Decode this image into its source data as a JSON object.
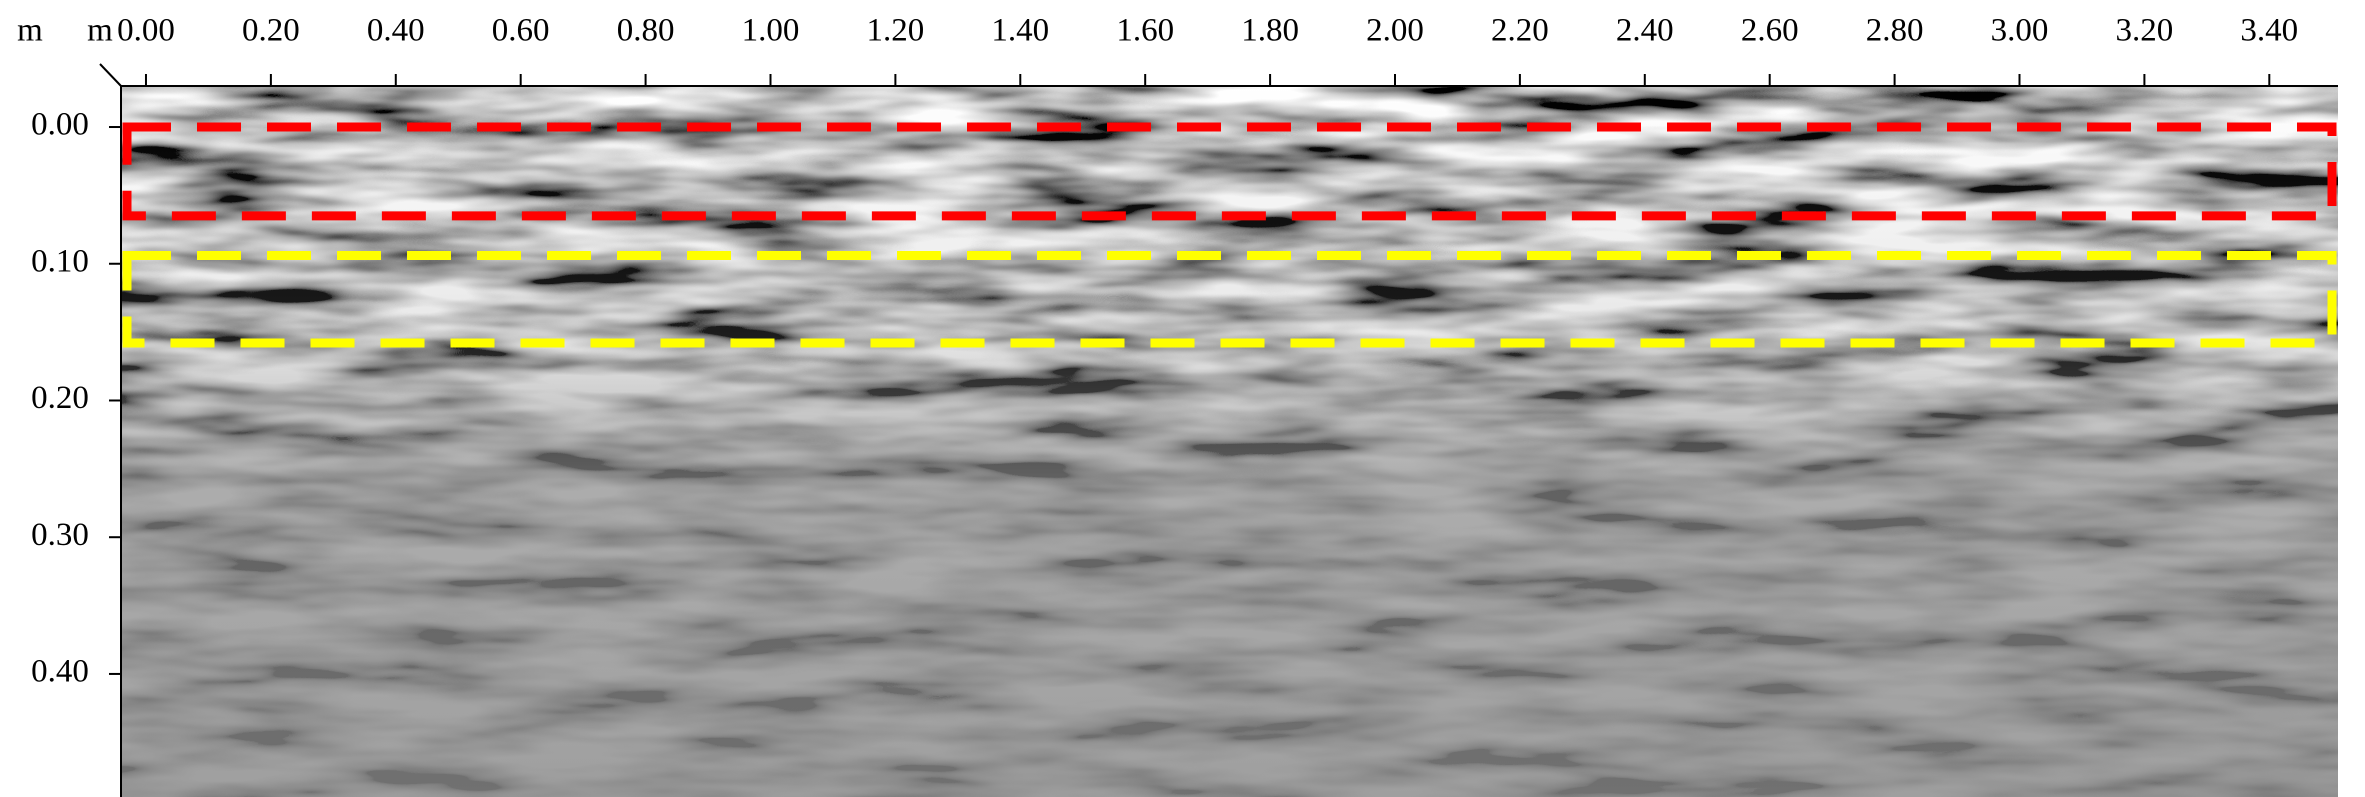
{
  "chart_data": {
    "type": "radargram",
    "x_unit": "m",
    "y_unit": "m",
    "xlim": [
      -0.04,
      3.51
    ],
    "ylim": [
      -0.03,
      0.49
    ],
    "xticks": [
      {
        "value": 0,
        "label": "0.00"
      },
      {
        "value": 0.2,
        "label": "0.20"
      },
      {
        "value": 0.4,
        "label": "0.40"
      },
      {
        "value": 0.6,
        "label": "0.60"
      },
      {
        "value": 0.8,
        "label": "0.80"
      },
      {
        "value": 1,
        "label": "1.00"
      },
      {
        "value": 1.2,
        "label": "1.20"
      },
      {
        "value": 1.4,
        "label": "1.40"
      },
      {
        "value": 1.6,
        "label": "1.60"
      },
      {
        "value": 1.8,
        "label": "1.80"
      },
      {
        "value": 2,
        "label": "2.00"
      },
      {
        "value": 2.2,
        "label": "2.20"
      },
      {
        "value": 2.4,
        "label": "2.40"
      },
      {
        "value": 2.6,
        "label": "2.60"
      },
      {
        "value": 2.8,
        "label": "2.80"
      },
      {
        "value": 3,
        "label": "3.00"
      },
      {
        "value": 3.2,
        "label": "3.20"
      },
      {
        "value": 3.4,
        "label": "3.40"
      }
    ],
    "yticks": [
      {
        "value": 0,
        "label": "0.00"
      },
      {
        "value": 0.1,
        "label": "0.10"
      },
      {
        "value": 0.2,
        "label": "0.20"
      },
      {
        "value": 0.3,
        "label": "0.30"
      },
      {
        "value": 0.4,
        "label": "0.40"
      }
    ],
    "regions": [
      {
        "color": "#ff0000",
        "ylim": [
          0.0,
          0.065
        ]
      },
      {
        "color": "#ffff00",
        "ylim": [
          0.094,
          0.158
        ]
      }
    ]
  }
}
